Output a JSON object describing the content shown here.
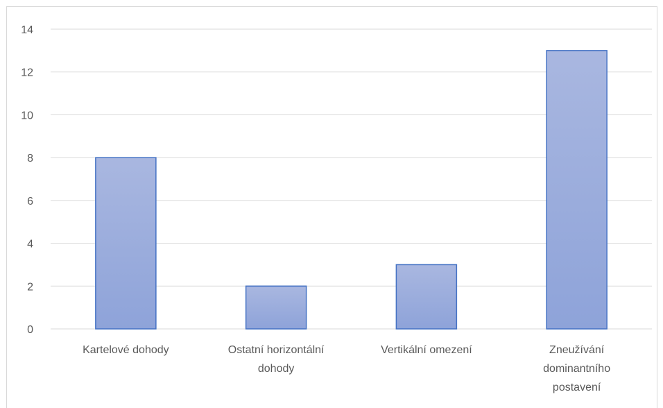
{
  "chart_data": {
    "type": "bar",
    "categories": [
      [
        "Kartelové dohody"
      ],
      [
        "Ostatní horizontální",
        "dohody"
      ],
      [
        "Vertikální omezení"
      ],
      [
        "Zneužívání",
        "dominantního",
        "postavení"
      ]
    ],
    "values": [
      8,
      2,
      3,
      13
    ],
    "title": "",
    "xlabel": "",
    "ylabel": "",
    "ylim": [
      0,
      14
    ],
    "yticks": [
      0,
      2,
      4,
      6,
      8,
      10,
      12,
      14
    ],
    "grid": true,
    "legend": "none",
    "colors": {
      "bar_top": "#a9b7e0",
      "bar_bottom": "#8ea3d9",
      "bar_border": "#4472c4",
      "grid": "#d9d9d9",
      "tick_text": "#595959"
    }
  }
}
